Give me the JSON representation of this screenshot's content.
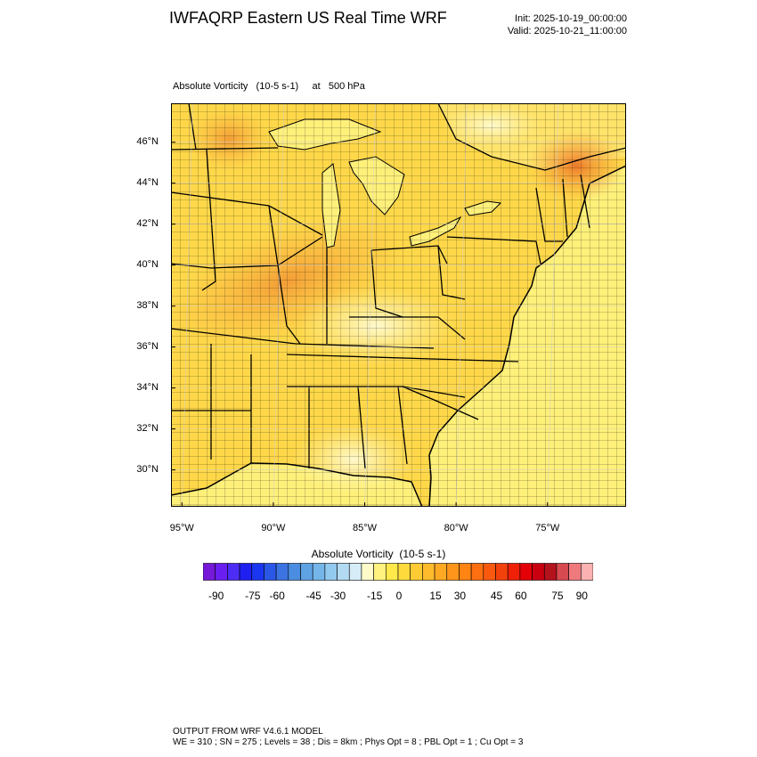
{
  "header": {
    "title": "IWFAQRP Eastern US Real Time WRF",
    "init": "Init: 2025-10-19_00:00:00",
    "valid": "Valid: 2025-10-21_11:00:00"
  },
  "field_label": "Absolute Vorticity   (10-5 s-1)     at   500 hPa",
  "map": {
    "lat_labels": [
      "46°N",
      "44°N",
      "42°N",
      "40°N",
      "38°N",
      "36°N",
      "34°N",
      "32°N",
      "30°N"
    ],
    "lat_values": [
      46,
      44,
      42,
      40,
      38,
      36,
      34,
      32,
      30
    ],
    "lon_labels": [
      "95°W",
      "90°W",
      "85°W",
      "80°W",
      "75°W"
    ],
    "lon_values": [
      -95,
      -90,
      -85,
      -80,
      -75
    ],
    "lat_range": [
      28.2,
      47.9
    ],
    "lon_range": [
      -95.6,
      -70.7
    ],
    "colors": {
      "ocean": "#fff07a",
      "land_base": "#ffd84a",
      "high_vort": "#f7a339",
      "peak_vort": "#ef7a2a",
      "low_vort": "#fff9c6",
      "boundary": "#000000"
    }
  },
  "colorbar": {
    "title": "Absolute Vorticity  (10-5 s-1)",
    "colors": [
      "#7518d8",
      "#6a1ef0",
      "#4d2cf5",
      "#1f1ff2",
      "#1a36f0",
      "#2b57e6",
      "#3b74e0",
      "#4b8de0",
      "#5fa2e4",
      "#75b6ea",
      "#92c9ef",
      "#b2dbf3",
      "#d6ecf7",
      "#fffbc9",
      "#fff27f",
      "#ffe84a",
      "#ffda3c",
      "#ffcb34",
      "#ffbb2c",
      "#ffa923",
      "#ff961b",
      "#ff8413",
      "#fd6f10",
      "#f8590e",
      "#f3410c",
      "#ef1f08",
      "#e30007",
      "#c90010",
      "#b4121d",
      "#d64a50",
      "#ef7a7e",
      "#fcb1b2"
    ],
    "labels": [
      "-90",
      "-75",
      "-60",
      "-45",
      "-30",
      "-15",
      "0",
      "15",
      "30",
      "45",
      "60",
      "75",
      "90"
    ]
  },
  "footer": {
    "line1": "OUTPUT FROM WRF V4.6.1 MODEL",
    "line2": "WE = 310 ; SN = 275 ; Levels = 38 ; Dis = 8km ; Phys Opt = 8 ; PBL Opt = 1 ; Cu Opt = 3"
  }
}
